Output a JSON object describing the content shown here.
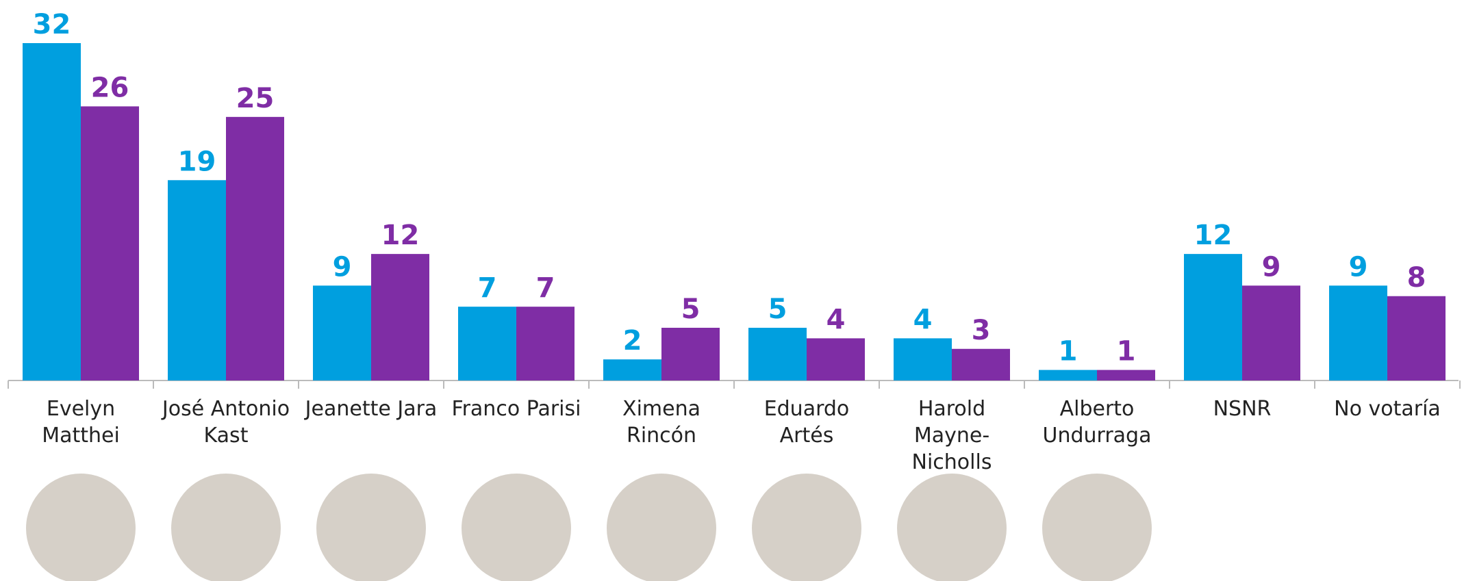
{
  "chart_data": {
    "type": "bar",
    "categories": [
      "Evelyn Matthei",
      "José Antonio Kast",
      "Jeanette Jara",
      "Franco Parisi",
      "Ximena Rincón",
      "Eduardo Artés",
      "Harold Mayne-Nicholls",
      "Alberto Undurraga",
      "NSNR",
      "No votaría"
    ],
    "series": [
      {
        "color": "#009fdf",
        "values": [
          32,
          19,
          9,
          7,
          2,
          5,
          4,
          1,
          12,
          9
        ]
      },
      {
        "color": "#7f2da5",
        "values": [
          26,
          25,
          12,
          7,
          5,
          4,
          3,
          1,
          9,
          8
        ]
      }
    ],
    "ylim": [
      0,
      32
    ]
  }
}
